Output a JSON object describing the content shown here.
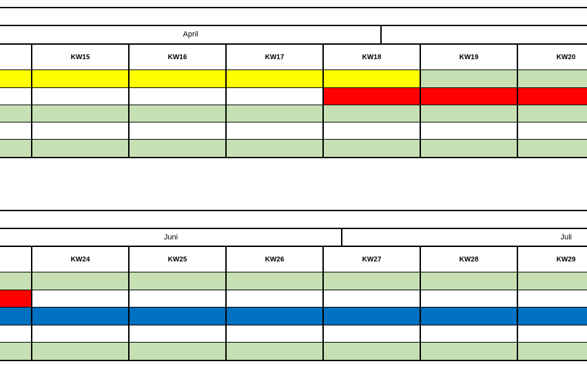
{
  "colors": {
    "yellow": "#ffff00",
    "green": "#c6e0b4",
    "red": "#ff0000",
    "blue": "#0070c0",
    "white": "#ffffff",
    "border": "#000000"
  },
  "section1": {
    "months": [
      "April",
      ""
    ],
    "weeks": [
      "KW15",
      "KW16",
      "KW17",
      "KW18",
      "KW19",
      "KW20"
    ],
    "rows": [
      [
        "yellow",
        "yellow",
        "yellow",
        "yellow",
        "yellow",
        "green",
        "green"
      ],
      [
        "white",
        "white",
        "white",
        "white",
        "red",
        "red",
        "red"
      ],
      [
        "green",
        "green",
        "green",
        "green",
        "green",
        "green",
        "green"
      ],
      [
        "white",
        "white",
        "white",
        "white",
        "white",
        "white",
        "white"
      ],
      [
        "green",
        "green",
        "green",
        "green",
        "green",
        "green",
        "green"
      ]
    ]
  },
  "section2": {
    "months": [
      "Juni",
      "Juli"
    ],
    "weeks": [
      "KW24",
      "KW25",
      "KW26",
      "KW27",
      "KW28",
      "KW29"
    ],
    "rows": [
      [
        "green",
        "green",
        "green",
        "green",
        "green",
        "green",
        "green"
      ],
      [
        "red",
        "white",
        "white",
        "white",
        "white",
        "white",
        "white"
      ],
      [
        "blue",
        "blue",
        "blue",
        "blue",
        "blue",
        "blue",
        "blue"
      ],
      [
        "white",
        "white",
        "white",
        "white",
        "white",
        "white",
        "white"
      ],
      [
        "green",
        "green",
        "green",
        "green",
        "green",
        "green",
        "green"
      ]
    ]
  }
}
